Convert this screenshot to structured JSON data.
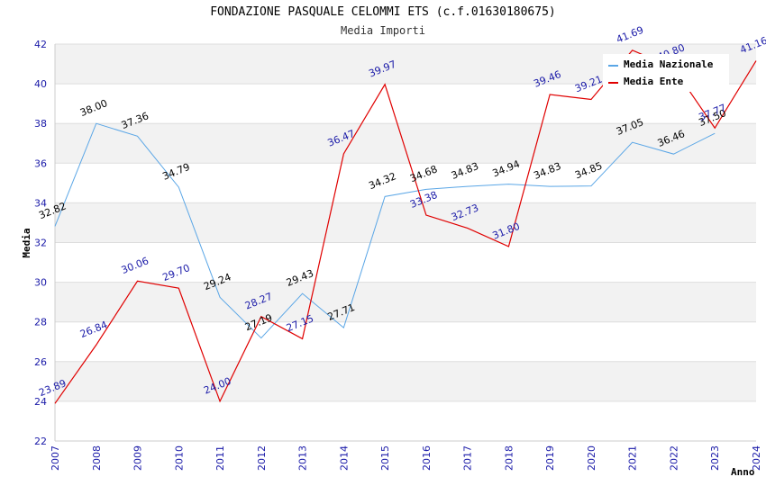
{
  "chart_data": {
    "type": "line",
    "title": "FONDAZIONE PASQUALE CELOMMI ETS (c.f.01630180675)",
    "subtitle": "Media Importi",
    "xlabel": "Anno",
    "ylabel": "Media",
    "ylim": [
      22,
      42
    ],
    "yticks": [
      22,
      24,
      26,
      28,
      30,
      32,
      34,
      36,
      38,
      40,
      42
    ],
    "categories": [
      "2007",
      "2008",
      "2009",
      "2010",
      "2011",
      "2012",
      "2013",
      "2014",
      "2015",
      "2016",
      "2017",
      "2018",
      "2019",
      "2020",
      "2021",
      "2022",
      "2023",
      "2024"
    ],
    "series": [
      {
        "name": "Media Nazionale",
        "color": "#5aa6e6",
        "values": [
          32.82,
          38.0,
          37.36,
          34.79,
          29.24,
          27.19,
          29.43,
          27.71,
          34.32,
          34.68,
          34.83,
          34.94,
          34.83,
          34.85,
          37.05,
          36.46,
          37.5,
          null
        ],
        "labels": [
          "32.82",
          "38.00",
          "37.36",
          "34.79",
          "29.24",
          "27.19",
          "29.43",
          "27.71",
          "34.32",
          "34.68",
          "34.83",
          "34.94",
          "34.83",
          "34.85",
          "37.05",
          "36.46",
          "37.50",
          ""
        ]
      },
      {
        "name": "Media Ente",
        "color": "#e00000",
        "values": [
          23.89,
          26.84,
          30.06,
          29.7,
          24.0,
          28.27,
          27.15,
          36.47,
          39.97,
          33.38,
          32.73,
          31.8,
          39.46,
          39.21,
          41.69,
          40.8,
          37.77,
          41.16
        ],
        "labels": [
          "23.89",
          "26.84",
          "30.06",
          "29.70",
          "24.00",
          "28.27",
          "27.15",
          "36.47",
          "39.97",
          "33.38",
          "32.73",
          "31.80",
          "39.46",
          "39.21",
          "41.69",
          "40.80",
          "37.77",
          "41.16"
        ]
      }
    ],
    "grid": true,
    "legend_position": "top-right"
  },
  "legend": {
    "nazionale": "Media Nazionale",
    "ente": "Media Ente"
  }
}
